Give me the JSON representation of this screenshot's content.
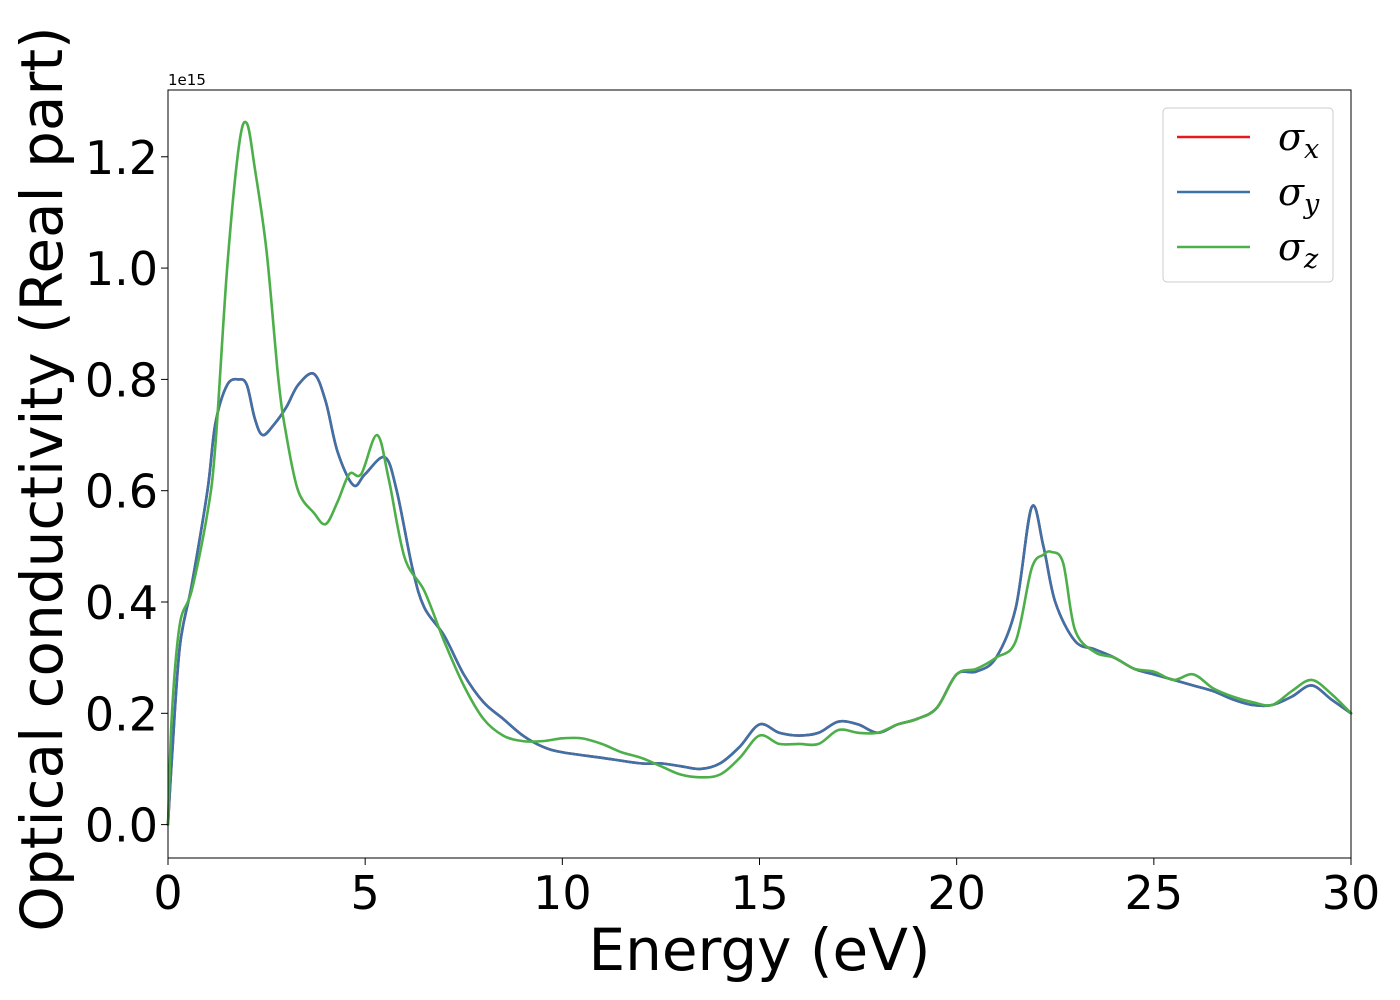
{
  "chart_data": {
    "type": "line",
    "title": "",
    "xlabel": "Energy (eV)",
    "ylabel": "Optical conductivity (Real part)",
    "y_offset_label": "1e15",
    "xlim": [
      0,
      30
    ],
    "ylim": [
      -0.06,
      1.32
    ],
    "x_ticks": [
      0,
      5,
      10,
      15,
      20,
      25,
      30
    ],
    "x_tick_labels": [
      "0",
      "5",
      "10",
      "15",
      "20",
      "25",
      "30"
    ],
    "y_ticks": [
      0.0,
      0.2,
      0.4,
      0.6,
      0.8,
      1.0,
      1.2
    ],
    "y_tick_labels": [
      "0.0",
      "0.2",
      "0.4",
      "0.6",
      "0.8",
      "1.0",
      "1.2"
    ],
    "grid": false,
    "legend_position": "top-right",
    "series": [
      {
        "name": "σx",
        "legend_symbol": "σ",
        "legend_subscript": "x",
        "color": "#e41a1c",
        "x": [
          0,
          0.1,
          0.3,
          0.6,
          1.0,
          1.2,
          1.5,
          1.8,
          2.0,
          2.2,
          2.4,
          2.7,
          3.0,
          3.3,
          3.7,
          4.0,
          4.3,
          4.7,
          5.0,
          5.5,
          5.8,
          6.2,
          6.5,
          7.0,
          7.5,
          8.0,
          8.5,
          9.0,
          9.5,
          10.0,
          11.0,
          12.0,
          12.5,
          13.0,
          13.5,
          14.0,
          14.5,
          15.0,
          15.5,
          16.0,
          16.5,
          17.0,
          17.5,
          18.0,
          18.5,
          19.0,
          19.5,
          20.0,
          20.5,
          21.0,
          21.5,
          21.9,
          22.2,
          22.5,
          23.0,
          23.5,
          24.0,
          24.5,
          25.0,
          25.5,
          26.0,
          26.5,
          27.0,
          27.5,
          28.0,
          28.5,
          29.0,
          29.5,
          30.0
        ],
        "values": [
          0.0,
          0.12,
          0.32,
          0.43,
          0.6,
          0.72,
          0.79,
          0.8,
          0.79,
          0.73,
          0.7,
          0.72,
          0.75,
          0.79,
          0.81,
          0.76,
          0.67,
          0.61,
          0.63,
          0.66,
          0.6,
          0.46,
          0.39,
          0.34,
          0.27,
          0.22,
          0.19,
          0.16,
          0.14,
          0.13,
          0.12,
          0.11,
          0.11,
          0.105,
          0.1,
          0.11,
          0.14,
          0.18,
          0.165,
          0.16,
          0.165,
          0.185,
          0.18,
          0.165,
          0.18,
          0.19,
          0.21,
          0.27,
          0.275,
          0.3,
          0.39,
          0.57,
          0.5,
          0.4,
          0.33,
          0.315,
          0.3,
          0.28,
          0.27,
          0.26,
          0.25,
          0.24,
          0.225,
          0.215,
          0.215,
          0.23,
          0.25,
          0.225,
          0.2
        ]
      },
      {
        "name": "σy",
        "legend_symbol": "σ",
        "legend_subscript": "y",
        "color": "#3d72a8",
        "x": [
          0,
          0.1,
          0.3,
          0.6,
          1.0,
          1.2,
          1.5,
          1.8,
          2.0,
          2.2,
          2.4,
          2.7,
          3.0,
          3.3,
          3.7,
          4.0,
          4.3,
          4.7,
          5.0,
          5.5,
          5.8,
          6.2,
          6.5,
          7.0,
          7.5,
          8.0,
          8.5,
          9.0,
          9.5,
          10.0,
          11.0,
          12.0,
          12.5,
          13.0,
          13.5,
          14.0,
          14.5,
          15.0,
          15.5,
          16.0,
          16.5,
          17.0,
          17.5,
          18.0,
          18.5,
          19.0,
          19.5,
          20.0,
          20.5,
          21.0,
          21.5,
          21.9,
          22.2,
          22.5,
          23.0,
          23.5,
          24.0,
          24.5,
          25.0,
          25.5,
          26.0,
          26.5,
          27.0,
          27.5,
          28.0,
          28.5,
          29.0,
          29.5,
          30.0
        ],
        "values": [
          0.0,
          0.12,
          0.32,
          0.43,
          0.6,
          0.72,
          0.79,
          0.8,
          0.79,
          0.73,
          0.7,
          0.72,
          0.75,
          0.79,
          0.81,
          0.76,
          0.67,
          0.61,
          0.63,
          0.66,
          0.6,
          0.46,
          0.39,
          0.34,
          0.27,
          0.22,
          0.19,
          0.16,
          0.14,
          0.13,
          0.12,
          0.11,
          0.11,
          0.105,
          0.1,
          0.11,
          0.14,
          0.18,
          0.165,
          0.16,
          0.165,
          0.185,
          0.18,
          0.165,
          0.18,
          0.19,
          0.21,
          0.27,
          0.275,
          0.3,
          0.39,
          0.57,
          0.5,
          0.4,
          0.33,
          0.315,
          0.3,
          0.28,
          0.27,
          0.26,
          0.25,
          0.24,
          0.225,
          0.215,
          0.215,
          0.23,
          0.25,
          0.225,
          0.2
        ]
      },
      {
        "name": "σz",
        "legend_symbol": "σ",
        "legend_subscript": "z",
        "color": "#4daf4a",
        "x": [
          0,
          0.1,
          0.3,
          0.6,
          1.0,
          1.2,
          1.5,
          1.8,
          2.0,
          2.2,
          2.5,
          2.8,
          3.0,
          3.3,
          3.7,
          4.0,
          4.3,
          4.6,
          4.9,
          5.3,
          5.6,
          6.0,
          6.5,
          7.0,
          7.5,
          8.0,
          8.5,
          9.0,
          9.5,
          10.0,
          10.5,
          11.0,
          11.5,
          12.0,
          12.5,
          13.0,
          13.5,
          14.0,
          14.5,
          15.0,
          15.5,
          16.0,
          16.5,
          17.0,
          17.5,
          18.0,
          18.5,
          19.0,
          19.5,
          20.0,
          20.5,
          21.0,
          21.5,
          21.9,
          22.2,
          22.4,
          22.7,
          23.0,
          23.5,
          24.0,
          24.5,
          25.0,
          25.5,
          26.0,
          26.5,
          27.0,
          27.5,
          28.0,
          28.5,
          29.0,
          29.5,
          30.0
        ],
        "values": [
          0.0,
          0.2,
          0.36,
          0.42,
          0.56,
          0.68,
          1.0,
          1.22,
          1.26,
          1.18,
          1.03,
          0.8,
          0.7,
          0.6,
          0.56,
          0.54,
          0.58,
          0.63,
          0.63,
          0.7,
          0.62,
          0.48,
          0.42,
          0.33,
          0.25,
          0.19,
          0.16,
          0.15,
          0.15,
          0.155,
          0.155,
          0.145,
          0.13,
          0.12,
          0.105,
          0.09,
          0.085,
          0.09,
          0.12,
          0.16,
          0.145,
          0.145,
          0.145,
          0.17,
          0.165,
          0.165,
          0.18,
          0.19,
          0.21,
          0.27,
          0.28,
          0.3,
          0.33,
          0.46,
          0.485,
          0.49,
          0.47,
          0.35,
          0.31,
          0.3,
          0.28,
          0.275,
          0.26,
          0.27,
          0.245,
          0.23,
          0.22,
          0.215,
          0.24,
          0.26,
          0.235,
          0.2
        ]
      }
    ]
  }
}
